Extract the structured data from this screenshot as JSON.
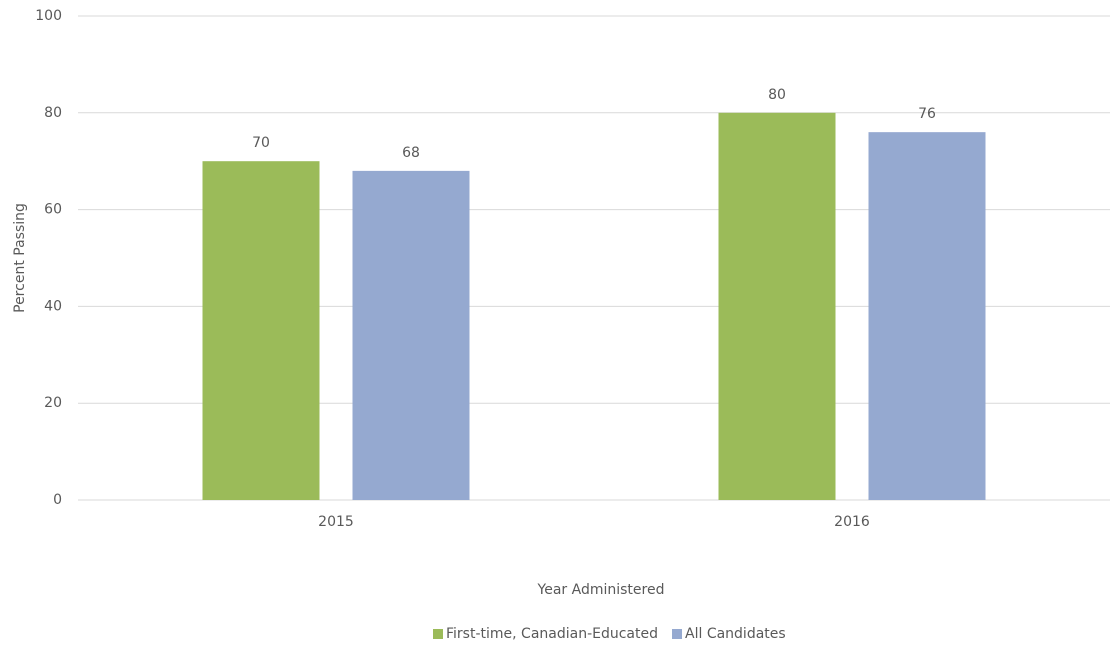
{
  "chart_data": {
    "type": "bar",
    "categories": [
      "2015",
      "2016"
    ],
    "series": [
      {
        "name": "First-time, Canadian-Educated",
        "color": "#9bbb59",
        "values": [
          70,
          80
        ]
      },
      {
        "name": "All Candidates",
        "color": "#95a9d0",
        "values": [
          68,
          76
        ]
      }
    ],
    "x_label": "Year Administered",
    "y_label": "Percent Passing",
    "ylim": [
      0,
      100
    ],
    "yticks": [
      0,
      20,
      40,
      60,
      80,
      100
    ],
    "grid": true,
    "legend": "bottom"
  }
}
